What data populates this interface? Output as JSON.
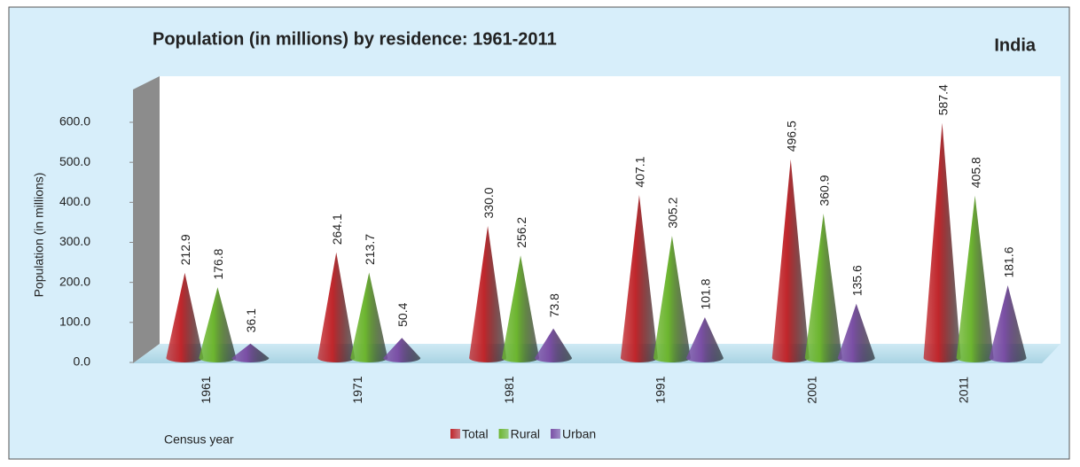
{
  "chart_data": {
    "type": "cone-bar",
    "title": "Population (in millions) by residence: 1961-2011",
    "subtitle": "India",
    "y_label": "Population (in millions)",
    "x_label": "Census year",
    "categories": [
      "1961",
      "1971",
      "1981",
      "1991",
      "2001",
      "2011"
    ],
    "series": [
      {
        "name": "Total",
        "color": "#c0262b",
        "values": [
          212.9,
          264.1,
          330.0,
          407.1,
          496.5,
          587.4
        ],
        "value_labels": [
          "212.9",
          "264.1",
          "330.0",
          "407.1",
          "496.5",
          "587.4"
        ]
      },
      {
        "name": "Rural",
        "color": "#6cb52f",
        "values": [
          176.8,
          213.7,
          256.2,
          305.2,
          360.9,
          405.8
        ],
        "value_labels": [
          "176.8",
          "213.7",
          "256.2",
          "305.2",
          "360.9",
          "405.8"
        ]
      },
      {
        "name": "Urban",
        "color": "#7a4fa5",
        "values": [
          36.1,
          50.4,
          73.8,
          101.8,
          135.6,
          181.6
        ],
        "value_labels": [
          "36.1",
          "50.4",
          "73.8",
          "101.8",
          "135.6",
          "181.6"
        ]
      }
    ],
    "ylim": [
      0,
      700
    ],
    "yticks": [
      {
        "value": 0,
        "label": "0.0"
      },
      {
        "value": 100,
        "label": "100.0"
      },
      {
        "value": 200,
        "label": "200.0"
      },
      {
        "value": 300,
        "label": "300.0"
      },
      {
        "value": 400,
        "label": "400.0"
      },
      {
        "value": 500,
        "label": "500.0"
      },
      {
        "value": 600,
        "label": "600.0"
      }
    ],
    "grid": false,
    "legend": "bottom"
  }
}
